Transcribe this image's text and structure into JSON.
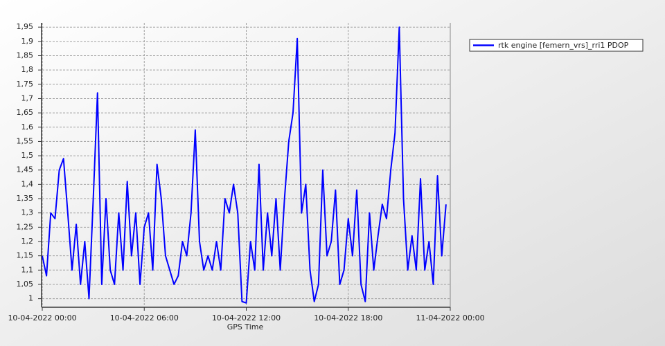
{
  "chart_data": {
    "type": "line",
    "x_label": "GPS Time",
    "x": [
      "2022-04-10T00:00",
      "2022-04-10T00:15",
      "2022-04-10T00:30",
      "2022-04-10T00:45",
      "2022-04-10T01:00",
      "2022-04-10T01:15",
      "2022-04-10T01:30",
      "2022-04-10T01:45",
      "2022-04-10T02:00",
      "2022-04-10T02:15",
      "2022-04-10T02:30",
      "2022-04-10T02:45",
      "2022-04-10T03:00",
      "2022-04-10T03:15",
      "2022-04-10T03:30",
      "2022-04-10T03:45",
      "2022-04-10T04:00",
      "2022-04-10T04:15",
      "2022-04-10T04:30",
      "2022-04-10T04:45",
      "2022-04-10T05:00",
      "2022-04-10T05:15",
      "2022-04-10T05:30",
      "2022-04-10T05:45",
      "2022-04-10T06:00",
      "2022-04-10T06:15",
      "2022-04-10T06:30",
      "2022-04-10T06:45",
      "2022-04-10T07:00",
      "2022-04-10T07:15",
      "2022-04-10T07:30",
      "2022-04-10T07:45",
      "2022-04-10T08:00",
      "2022-04-10T08:15",
      "2022-04-10T08:30",
      "2022-04-10T08:45",
      "2022-04-10T09:00",
      "2022-04-10T09:15",
      "2022-04-10T09:30",
      "2022-04-10T09:45",
      "2022-04-10T10:00",
      "2022-04-10T10:15",
      "2022-04-10T10:30",
      "2022-04-10T10:45",
      "2022-04-10T11:00",
      "2022-04-10T11:15",
      "2022-04-10T11:30",
      "2022-04-10T11:45",
      "2022-04-10T12:00",
      "2022-04-10T12:15",
      "2022-04-10T12:30",
      "2022-04-10T12:45",
      "2022-04-10T13:00",
      "2022-04-10T13:15",
      "2022-04-10T13:30",
      "2022-04-10T13:45",
      "2022-04-10T14:00",
      "2022-04-10T14:15",
      "2022-04-10T14:30",
      "2022-04-10T14:45",
      "2022-04-10T15:00",
      "2022-04-10T15:15",
      "2022-04-10T15:30",
      "2022-04-10T15:45",
      "2022-04-10T16:00",
      "2022-04-10T16:15",
      "2022-04-10T16:30",
      "2022-04-10T16:45",
      "2022-04-10T17:00",
      "2022-04-10T17:15",
      "2022-04-10T17:30",
      "2022-04-10T17:45",
      "2022-04-10T18:00",
      "2022-04-10T18:15",
      "2022-04-10T18:30",
      "2022-04-10T18:45",
      "2022-04-10T19:00",
      "2022-04-10T19:15",
      "2022-04-10T19:30",
      "2022-04-10T19:45",
      "2022-04-10T20:00",
      "2022-04-10T20:15",
      "2022-04-10T20:30",
      "2022-04-10T20:45",
      "2022-04-10T21:00",
      "2022-04-10T21:15",
      "2022-04-10T21:30",
      "2022-04-10T21:45",
      "2022-04-10T22:00",
      "2022-04-10T22:15",
      "2022-04-10T22:30",
      "2022-04-10T22:45",
      "2022-04-10T23:00",
      "2022-04-10T23:15",
      "2022-04-10T23:30",
      "2022-04-10T23:45"
    ],
    "series": [
      {
        "name": "rtk engine [femern_vrs]_rri1 PDOP",
        "color": "#0000ff",
        "values": [
          1.15,
          1.08,
          1.3,
          1.28,
          1.45,
          1.49,
          1.3,
          1.1,
          1.26,
          1.05,
          1.2,
          1.0,
          1.35,
          1.72,
          1.05,
          1.35,
          1.1,
          1.05,
          1.3,
          1.1,
          1.41,
          1.15,
          1.3,
          1.05,
          1.25,
          1.3,
          1.1,
          1.47,
          1.35,
          1.15,
          1.1,
          1.05,
          1.08,
          1.2,
          1.15,
          1.3,
          1.59,
          1.2,
          1.1,
          1.15,
          1.1,
          1.2,
          1.1,
          1.35,
          1.3,
          1.4,
          1.3,
          0.99,
          0.985,
          1.2,
          1.1,
          1.47,
          1.1,
          1.3,
          1.15,
          1.35,
          1.1,
          1.35,
          1.55,
          1.65,
          1.91,
          1.3,
          1.4,
          1.1,
          0.99,
          1.05,
          1.45,
          1.15,
          1.2,
          1.38,
          1.05,
          1.1,
          1.28,
          1.15,
          1.38,
          1.05,
          0.99,
          1.3,
          1.1,
          1.22,
          1.33,
          1.28,
          1.45,
          1.58,
          1.95,
          1.35,
          1.1,
          1.22,
          1.1,
          1.42,
          1.1,
          1.2,
          1.05,
          1.43,
          1.15,
          1.33
        ]
      }
    ],
    "xlim": [
      "2022-04-10T00:00",
      "2022-04-11T00:00"
    ],
    "xticks": [
      {
        "value": "2022-04-10T00:00",
        "label": "10-04-2022 00:00"
      },
      {
        "value": "2022-04-10T06:00",
        "label": "10-04-2022 06:00"
      },
      {
        "value": "2022-04-10T12:00",
        "label": "10-04-2022 12:00"
      },
      {
        "value": "2022-04-10T18:00",
        "label": "10-04-2022 18:00"
      },
      {
        "value": "2022-04-11T00:00",
        "label": "11-04-2022 00:00"
      }
    ],
    "ylim": [
      0.97,
      1.965
    ],
    "yticks": [
      1,
      {
        "value": 1.05,
        "label": "1,05"
      },
      {
        "value": 1.1,
        "label": "1,1"
      },
      {
        "value": 1.15,
        "label": "1,15"
      },
      {
        "value": 1.2,
        "label": "1,2"
      },
      {
        "value": 1.25,
        "label": "1,25"
      },
      {
        "value": 1.3,
        "label": "1,3"
      },
      {
        "value": 1.35,
        "label": "1,35"
      },
      {
        "value": 1.4,
        "label": "1,4"
      },
      {
        "value": 1.45,
        "label": "1,45"
      },
      {
        "value": 1.5,
        "label": "1,5"
      },
      {
        "value": 1.55,
        "label": "1,55"
      },
      {
        "value": 1.6,
        "label": "1,6"
      },
      {
        "value": 1.65,
        "label": "1,65"
      },
      {
        "value": 1.7,
        "label": "1,7"
      },
      {
        "value": 1.75,
        "label": "1,75"
      },
      {
        "value": 1.8,
        "label": "1,8"
      },
      {
        "value": 1.85,
        "label": "1,85"
      },
      {
        "value": 1.9,
        "label": "1,9"
      },
      {
        "value": 1.95,
        "label": "1,95"
      }
    ],
    "grid": true
  }
}
